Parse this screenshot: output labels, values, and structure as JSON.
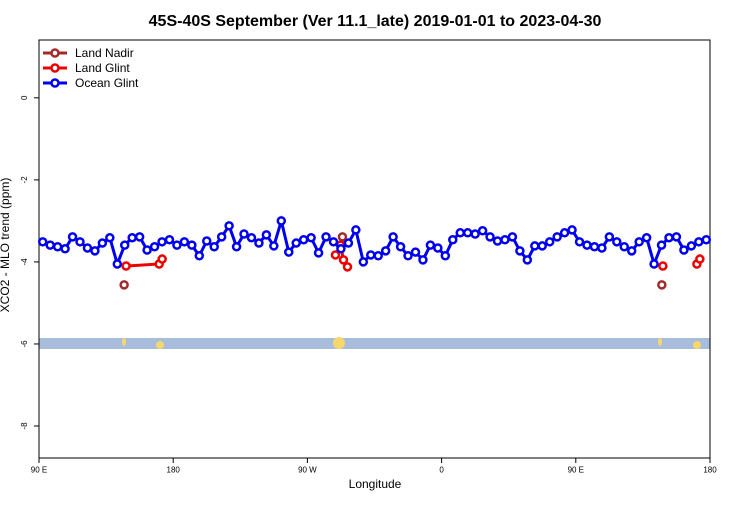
{
  "chart_data": {
    "type": "line",
    "title": "45S-40S September (Ver 11.1_late)   2019-01-01 to 2023-04-30",
    "x_label": "Longitude",
    "y_label": "XCO2 - MLO trend (ppm)",
    "xlim": [
      90,
      540
    ],
    "ylim": [
      -8.78,
      1.41
    ],
    "xticks": [
      {
        "value": 90,
        "label": "90 E"
      },
      {
        "value": 180,
        "label": "180"
      },
      {
        "value": 270,
        "label": "90 W"
      },
      {
        "value": 360,
        "label": "0"
      },
      {
        "value": 450,
        "label": "90 E"
      },
      {
        "value": 540,
        "label": "180"
      }
    ],
    "yticks": [
      -8,
      -6,
      -4,
      -2,
      0
    ],
    "legend": "top-left",
    "series": [
      {
        "name": "Land Nadir",
        "color": "#a52a2a",
        "x": [
          147.1,
          null,
          293.5,
          null,
          507.7
        ],
        "values": [
          -4.56,
          null,
          -3.39,
          null,
          -4.56
        ]
      },
      {
        "name": "Land Glint",
        "color": "#ee0000",
        "x": [
          148.4,
          170.6,
          172.6,
          null,
          288.8,
          292.2,
          294.2,
          296.9,
          null,
          508.4,
          null,
          531.2,
          533.2
        ],
        "values": [
          -4.1,
          -4.05,
          -3.93,
          null,
          -3.83,
          -3.59,
          -3.95,
          -4.12,
          null,
          -4.1,
          null,
          -4.05,
          -3.93
        ]
      },
      {
        "name": "Ocean Glint",
        "color": "#0000ee",
        "x": [
          92.5,
          97.5,
          102.5,
          107.5,
          112.5,
          117.5,
          122.5,
          127.5,
          132.5,
          137.5,
          142.5,
          147.5,
          152.5,
          157.5,
          162.5,
          167.5,
          172.5,
          177.5,
          182.5,
          187.5,
          192.5,
          197.5,
          202.5,
          207.5,
          212.5,
          217.5,
          222.5,
          227.5,
          232.5,
          237.5,
          242.5,
          247.5,
          252.5,
          257.5,
          262.5,
          267.5,
          272.5,
          277.5,
          282.5,
          287.5,
          292.5,
          297.5,
          302.5,
          307.5,
          312.5,
          317.5,
          322.5,
          327.5,
          332.5,
          337.5,
          342.5,
          347.5,
          352.5,
          357.5,
          362.5,
          367.5,
          372.5,
          377.5,
          382.5,
          387.5,
          392.5,
          397.5,
          402.5,
          407.5,
          412.5,
          417.5,
          422.5,
          427.5,
          432.5,
          437.5,
          442.5,
          447.5,
          452.5,
          457.5,
          462.5,
          467.5,
          472.5,
          477.5,
          482.5,
          487.5,
          492.5,
          497.5,
          502.5,
          507.5,
          512.5,
          517.5,
          522.5,
          527.5,
          532.5,
          537.5
        ],
        "values": [
          -3.51,
          -3.59,
          -3.63,
          -3.68,
          -3.39,
          -3.51,
          -3.66,
          -3.73,
          -3.54,
          -3.41,
          -4.05,
          -3.59,
          -3.41,
          -3.39,
          -3.71,
          -3.63,
          -3.51,
          -3.46,
          -3.59,
          -3.51,
          -3.59,
          -3.85,
          -3.49,
          -3.63,
          -3.39,
          -3.12,
          -3.63,
          -3.32,
          -3.41,
          -3.54,
          -3.34,
          -3.61,
          -3.0,
          -3.76,
          -3.54,
          -3.46,
          -3.41,
          -3.78,
          -3.39,
          -3.51,
          -3.68,
          -3.54,
          -3.22,
          -4.0,
          -3.83,
          -3.85,
          -3.73,
          -3.39,
          -3.63,
          -3.85,
          -3.76,
          -3.95,
          -3.59,
          -3.66,
          -3.85,
          -3.46,
          -3.29,
          -3.29,
          -3.32,
          -3.24,
          -3.39,
          -3.49,
          -3.46,
          -3.39,
          -3.73,
          -3.95,
          -3.61,
          -3.61,
          -3.51,
          -3.39,
          -3.29,
          -3.22,
          -3.51,
          -3.59,
          -3.63,
          -3.66,
          -3.39,
          -3.51,
          -3.63,
          -3.73,
          -3.51,
          -3.41,
          -4.05,
          -3.59,
          -3.41,
          -3.39,
          -3.71,
          -3.61,
          -3.51,
          -3.46
        ]
      }
    ]
  }
}
